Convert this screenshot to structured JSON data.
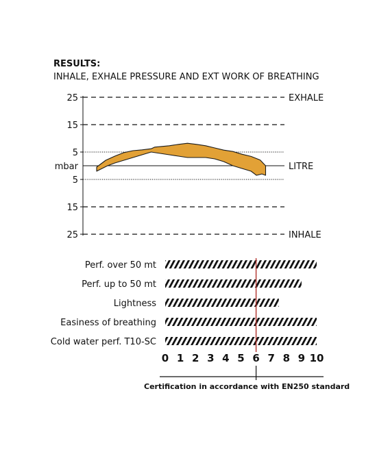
{
  "header": {
    "title": "RESULTS:",
    "subtitle": "INHALE, EXHALE PRESSURE AND EXT WORK OF BREATHING"
  },
  "colors": {
    "fill": "#E2A136",
    "outline": "#1a1a1a",
    "marker": "#B0302A",
    "hatch": "#111111",
    "text": "#111111"
  },
  "chart_data": [
    {
      "type": "area",
      "title": "INHALE, EXHALE PRESSURE AND EXT WORK OF BREATHING",
      "ylabel": "mbar",
      "y_ticks": [
        "25",
        "15",
        "5",
        "5",
        "15",
        "25"
      ],
      "y_tick_values": [
        25,
        15,
        5,
        -5,
        -15,
        -25
      ],
      "ylim": [
        -25,
        25
      ],
      "xlim": [
        0,
        10
      ],
      "grid": "dashed at ±15 and ±25, dotted at ±5",
      "right_labels": {
        "top": "EXHALE",
        "middle": "LITRE",
        "bottom": "INHALE"
      },
      "series": [
        {
          "upper": {
            "x": [
              0,
              0.2,
              0.5,
              1,
              1.5,
              2,
              2.5,
              3,
              3.2,
              4,
              4.5,
              5,
              5.5,
              6,
              6.5,
              7,
              7.5,
              8,
              8.5,
              9,
              9.3
            ],
            "y": [
              -0.5,
              0.5,
              2,
              3.5,
              4.8,
              5.5,
              5.8,
              6.2,
              6.8,
              7.3,
              7.8,
              8.2,
              7.8,
              7.3,
              6.5,
              5.7,
              5.2,
              4.2,
              3.4,
              2.1,
              0
            ]
          },
          "lower": {
            "x": [
              0,
              0.3,
              0.6,
              1,
              1.5,
              2,
              2.5,
              3,
              3.5,
              4,
              4.5,
              5,
              5.5,
              6,
              6.5,
              7,
              7.5,
              8,
              8.5,
              8.8,
              9.1,
              9.3
            ],
            "y": [
              -2,
              -1,
              0,
              1,
              2,
              3,
              4,
              5,
              4.5,
              4,
              3.5,
              3,
              3,
              3,
              2.5,
              1.5,
              0,
              -1,
              -2,
              -3.5,
              -3,
              -3.5
            ]
          }
        }
      ]
    },
    {
      "type": "bar",
      "categories": [
        "Perf. over 50 mt",
        "Perf. up to 50 mt",
        "Lightness",
        "Easiness of breathing",
        "Cold water perf.  T10-SC"
      ],
      "values": [
        10,
        9,
        7.5,
        10,
        10
      ],
      "xlim": [
        0,
        10
      ],
      "x_ticks": [
        "0",
        "1",
        "2",
        "3",
        "4",
        "5",
        "6",
        "7",
        "8",
        "9",
        "10"
      ],
      "marker": {
        "value": 6,
        "label": "6"
      },
      "caption": "Certification in accordance with EN250 standard"
    }
  ]
}
